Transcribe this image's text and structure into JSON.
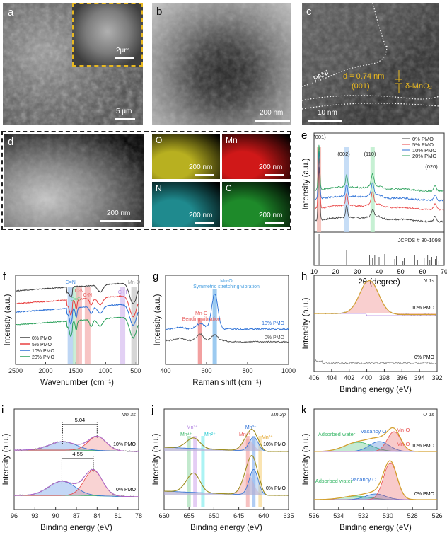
{
  "panels": {
    "a": {
      "label": "a",
      "scale_main": "5 µm",
      "scale_inset": "2µm"
    },
    "b": {
      "label": "b",
      "scale": "200 nm"
    },
    "c": {
      "label": "c",
      "scale": "10 nm",
      "region_label": "PANI",
      "d_spacing": "d = 0.74 nm",
      "plane": "(001)",
      "phase": "δ-MnO₂"
    },
    "d": {
      "label": "d",
      "scale": "200 nm",
      "maps": [
        {
          "element": "O",
          "scale": "200 nm",
          "color": "#b8b020"
        },
        {
          "element": "Mn",
          "scale": "200 nm",
          "color": "#d01818"
        },
        {
          "element": "N",
          "scale": "200 nm",
          "color": "#1f8a8e"
        },
        {
          "element": "C",
          "scale": "200 nm",
          "color": "#1e8a2a"
        }
      ]
    }
  },
  "chart_data": [
    {
      "id": "e",
      "label": "e",
      "type": "line",
      "title": "",
      "xlabel": "2θ (degree)",
      "ylabel": "Intensity (a.u.)",
      "xlim": [
        10,
        70
      ],
      "xticks": [
        10,
        20,
        30,
        40,
        50,
        60,
        70
      ],
      "legend": "top-right",
      "series": [
        {
          "name": "0% PMO",
          "color": "#404040"
        },
        {
          "name": "5% PMO",
          "color": "#e84040"
        },
        {
          "name": "10% PMO",
          "color": "#2a6fd6"
        },
        {
          "name": "20% PMO",
          "color": "#2aa05a"
        }
      ],
      "peaks": [
        {
          "label": "(001)",
          "x": 12.3,
          "band_color": "#f4b8b0"
        },
        {
          "label": "(002)",
          "x": 25.0,
          "band_color": "#b8d4f4"
        },
        {
          "label": "(110)",
          "x": 37.0,
          "band_color": "#b8ecc8"
        },
        {
          "label": "(020)",
          "x": 65.8,
          "band_color": ""
        }
      ],
      "reference": {
        "label": "JCPDS # 80-1098",
        "lines": [
          12.3,
          25.0,
          35.6,
          36.2,
          37.0,
          38.0,
          39.5,
          40.0,
          42.6,
          47.2,
          48.0,
          51.0,
          51.6,
          56.4,
          57.7,
          60.8,
          62.4,
          63.4,
          64.3,
          65.3,
          65.9,
          66.5,
          67.5
        ]
      }
    },
    {
      "id": "f",
      "label": "f",
      "type": "line",
      "xlabel": "Wavenumber (cm⁻¹)",
      "ylabel": "Intensity (a.u.)",
      "xlim": [
        2500,
        450
      ],
      "xticks": [
        2500,
        2000,
        1500,
        1000,
        500
      ],
      "legend": "bottom-left",
      "series": [
        {
          "name": "0% PMO",
          "color": "#404040"
        },
        {
          "name": "5% PMO",
          "color": "#e84040"
        },
        {
          "name": "10% PMO",
          "color": "#2a6fd6"
        },
        {
          "name": "20% PMO",
          "color": "#2aa05a"
        }
      ],
      "bands": [
        {
          "label": "C=N",
          "x": 1585,
          "color": "#a8c8f0",
          "text_color": "#4a90e2"
        },
        {
          "label": "C=C",
          "x": 1500,
          "color": "#b8e8c8",
          "text_color": "#6ccf8e"
        },
        {
          "label": "C-N",
          "x": 1440,
          "color": "#f4b0b0",
          "text_color": "#e86060"
        },
        {
          "label": "C-N",
          "x": 1300,
          "color": "#f4b0b0",
          "text_color": "#e86060"
        },
        {
          "label": "C-H",
          "x": 720,
          "color": "#d8c0f0",
          "text_color": "#b080e0"
        },
        {
          "label": "Mn-O",
          "x": 525,
          "color": "#c8c8c8",
          "text_color": "#a0a0a0"
        }
      ]
    },
    {
      "id": "g",
      "label": "g",
      "type": "line",
      "xlabel": "Raman shift (cm⁻¹)",
      "ylabel": "Intensity (a.u.)",
      "xlim": [
        400,
        1000
      ],
      "xticks": [
        400,
        600,
        800,
        1000
      ],
      "series": [
        {
          "name": "10% PMO",
          "color": "#2a6fd6"
        },
        {
          "name": "0% PMO",
          "color": "#505050"
        }
      ],
      "annotations": [
        {
          "title": "Mn-O",
          "text": "Symmetric stretching vibration",
          "x": 640,
          "color": "#4aa0e0"
        },
        {
          "title": "Mn-O",
          "text": "Bending vibration",
          "x": 568,
          "color": "#e86060"
        }
      ]
    },
    {
      "id": "h",
      "label": "h",
      "type": "line",
      "tag": "N 1s",
      "xlabel": "Binding energy (eV)",
      "ylabel": "Intensity (a.u.)",
      "xlim": [
        406,
        392
      ],
      "xticks": [
        406,
        404,
        402,
        400,
        398,
        396,
        394,
        392
      ],
      "series": [
        {
          "name": "10% PMO",
          "color": "#d4a030",
          "peak": 399.7
        },
        {
          "name": "0% PMO",
          "color": "#808080"
        }
      ]
    },
    {
      "id": "i",
      "label": "i",
      "type": "line",
      "tag": "Mn 3s",
      "xlabel": "Binding energy (eV)",
      "ylabel": "Intensity (a.u.)",
      "xlim": [
        96,
        78
      ],
      "xticks": [
        96,
        93,
        90,
        87,
        84,
        81,
        78
      ],
      "series": [
        {
          "name": "10% PMO",
          "peaks": [
            89.0,
            84.0
          ],
          "splitting": "5.04"
        },
        {
          "name": "0% PMO",
          "peaks": [
            89.1,
            84.55
          ],
          "splitting": "4.55"
        }
      ]
    },
    {
      "id": "j",
      "label": "j",
      "type": "line",
      "tag": "Mn 2p",
      "xlabel": "Binding energy (eV)",
      "ylabel": "Intensity (a.u.)",
      "xlim": [
        660,
        635
      ],
      "xticks": [
        660,
        655,
        650,
        645,
        640,
        635
      ],
      "series": [
        {
          "name": "10% PMO"
        },
        {
          "name": "0% PMO"
        }
      ],
      "bands": [
        {
          "label": "Mn⁴⁺",
          "x": 655.0,
          "color": "#a8e0b8",
          "text_color": "#3cb86a"
        },
        {
          "label": "Mn³⁺",
          "x": 653.8,
          "color": "#d8b8f0",
          "text_color": "#b080e0"
        },
        {
          "label": "Mn²⁺",
          "x": 652.2,
          "color": "#88eef0",
          "text_color": "#20c8d0"
        },
        {
          "label": "Mn⁴⁺",
          "x": 643.2,
          "color": "#f4a8a8",
          "text_color": "#e85050"
        },
        {
          "label": "Mn³⁺",
          "x": 642.0,
          "color": "#90b8f0",
          "text_color": "#2a6fd6"
        },
        {
          "label": "Mn²⁺",
          "x": 640.7,
          "color": "#f8d890",
          "text_color": "#e0a020"
        }
      ]
    },
    {
      "id": "k",
      "label": "k",
      "type": "line",
      "tag": "O 1s",
      "xlabel": "Binding energy (eV)",
      "ylabel": "Intensity (a.u.)",
      "xlim": [
        536,
        526
      ],
      "xticks": [
        536,
        534,
        532,
        530,
        528,
        526
      ],
      "series": [
        {
          "name": "10% PMO",
          "components": [
            {
              "label": "Adsorbed water",
              "x": 532.4,
              "color": "#3cb86a"
            },
            {
              "label": "Vacancy O",
              "x": 530.7,
              "color": "#2a6fd6"
            },
            {
              "label": "Mn-O",
              "x": 529.5,
              "color": "#e85050"
            }
          ]
        },
        {
          "name": "0% PMO",
          "components": [
            {
              "label": "Adsorbed water",
              "x": 532.6,
              "color": "#3cb86a"
            },
            {
              "label": "Vacancy O",
              "x": 531.0,
              "color": "#2a6fd6"
            },
            {
              "label": "Mn-O",
              "x": 529.8,
              "color": "#e85050"
            }
          ]
        }
      ]
    }
  ]
}
